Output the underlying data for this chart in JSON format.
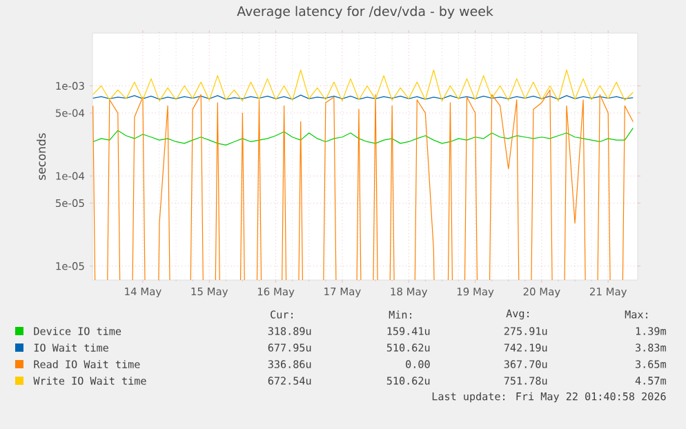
{
  "chart_data": {
    "type": "line",
    "title": "Average latency for /dev/vda - by week",
    "ylabel": "seconds",
    "log": "y",
    "grid": true,
    "legend": "bottom",
    "ylim": [
      7e-06,
      0.00385
    ],
    "yticks": [
      {
        "value": 1e-05,
        "label": "1e-05"
      },
      {
        "value": 5e-05,
        "label": "5e-05"
      },
      {
        "value": 0.0001,
        "label": "1e-04"
      },
      {
        "value": 0.0005,
        "label": "5e-04"
      },
      {
        "value": 0.001,
        "label": "1e-03"
      }
    ],
    "xlim": [
      "2026-05-13T05:50",
      "2026-05-21T10:40"
    ],
    "xticks": [
      {
        "value": "2026-05-14",
        "label": "14 May"
      },
      {
        "value": "2026-05-15",
        "label": "15 May"
      },
      {
        "value": "2026-05-16",
        "label": "16 May"
      },
      {
        "value": "2026-05-17",
        "label": "17 May"
      },
      {
        "value": "2026-05-18",
        "label": "18 May"
      },
      {
        "value": "2026-05-19",
        "label": "19 May"
      },
      {
        "value": "2026-05-20",
        "label": "20 May"
      },
      {
        "value": "2026-05-21",
        "label": "21 May"
      }
    ],
    "x": [
      "2026-05-13T06:00",
      "2026-05-13T09:00",
      "2026-05-13T12:00",
      "2026-05-13T15:00",
      "2026-05-13T18:00",
      "2026-05-13T21:00",
      "2026-05-14T00:00",
      "2026-05-14T03:00",
      "2026-05-14T06:00",
      "2026-05-14T09:00",
      "2026-05-14T12:00",
      "2026-05-14T15:00",
      "2026-05-14T18:00",
      "2026-05-14T21:00",
      "2026-05-15T00:00",
      "2026-05-15T03:00",
      "2026-05-15T06:00",
      "2026-05-15T09:00",
      "2026-05-15T12:00",
      "2026-05-15T15:00",
      "2026-05-15T18:00",
      "2026-05-15T21:00",
      "2026-05-16T00:00",
      "2026-05-16T03:00",
      "2026-05-16T06:00",
      "2026-05-16T09:00",
      "2026-05-16T12:00",
      "2026-05-16T15:00",
      "2026-05-16T18:00",
      "2026-05-16T21:00",
      "2026-05-17T00:00",
      "2026-05-17T03:00",
      "2026-05-17T06:00",
      "2026-05-17T09:00",
      "2026-05-17T12:00",
      "2026-05-17T15:00",
      "2026-05-17T18:00",
      "2026-05-17T21:00",
      "2026-05-18T00:00",
      "2026-05-18T03:00",
      "2026-05-18T06:00",
      "2026-05-18T09:00",
      "2026-05-18T12:00",
      "2026-05-18T15:00",
      "2026-05-18T18:00",
      "2026-05-18T21:00",
      "2026-05-19T00:00",
      "2026-05-19T03:00",
      "2026-05-19T06:00",
      "2026-05-19T09:00",
      "2026-05-19T12:00",
      "2026-05-19T15:00",
      "2026-05-19T18:00",
      "2026-05-19T21:00",
      "2026-05-20T00:00",
      "2026-05-20T03:00",
      "2026-05-20T06:00",
      "2026-05-20T09:00",
      "2026-05-20T12:00",
      "2026-05-20T15:00",
      "2026-05-20T18:00",
      "2026-05-20T21:00",
      "2026-05-21T00:00",
      "2026-05-21T03:00",
      "2026-05-21T06:00",
      "2026-05-21T09:00"
    ],
    "series": [
      {
        "name": "Device IO time",
        "color": "#00cc00",
        "values": [
          0.00024,
          0.00026,
          0.00025,
          0.00032,
          0.00028,
          0.00026,
          0.00029,
          0.00027,
          0.00025,
          0.00026,
          0.00024,
          0.00023,
          0.00025,
          0.00027,
          0.00025,
          0.00023,
          0.00022,
          0.00024,
          0.00026,
          0.00024,
          0.00025,
          0.00026,
          0.00028,
          0.00031,
          0.00027,
          0.00025,
          0.0003,
          0.00026,
          0.00024,
          0.00026,
          0.00027,
          0.0003,
          0.00026,
          0.00024,
          0.00023,
          0.00025,
          0.00026,
          0.00023,
          0.00024,
          0.00026,
          0.00028,
          0.00025,
          0.00023,
          0.00024,
          0.00026,
          0.00025,
          0.00027,
          0.00026,
          0.0003,
          0.00027,
          0.00026,
          0.00028,
          0.00027,
          0.00026,
          0.00027,
          0.00026,
          0.00028,
          0.0003,
          0.00027,
          0.00026,
          0.00025,
          0.00024,
          0.00026,
          0.00025,
          0.00025,
          0.00034
        ]
      },
      {
        "name": "IO Wait time",
        "color": "#0066b3",
        "values": [
          0.00073,
          0.00076,
          0.00072,
          0.00075,
          0.00073,
          0.00078,
          0.00072,
          0.00077,
          0.00071,
          0.00075,
          0.00072,
          0.00076,
          0.00073,
          0.00077,
          0.00072,
          0.00078,
          0.00071,
          0.00074,
          0.00072,
          0.00076,
          0.00073,
          0.00077,
          0.00072,
          0.00076,
          0.00071,
          0.00079,
          0.00072,
          0.00075,
          0.00073,
          0.00077,
          0.00072,
          0.00077,
          0.00071,
          0.00075,
          0.00072,
          0.00076,
          0.00073,
          0.00077,
          0.00072,
          0.00076,
          0.00071,
          0.00075,
          0.00072,
          0.00078,
          0.00073,
          0.00076,
          0.00072,
          0.00077,
          0.00073,
          0.00075,
          0.00072,
          0.00076,
          0.00073,
          0.00077,
          0.00072,
          0.00077,
          0.00071,
          0.00078,
          0.00072,
          0.00076,
          0.00073,
          0.00076,
          0.00073,
          0.00076,
          0.00072,
          0.00074
        ]
      },
      {
        "name": "Read IO Wait time",
        "color": "#ff8000",
        "values": [
          0.0006,
          null,
          0.0007,
          0.0005,
          null,
          0.00045,
          0.00075,
          null,
          3e-05,
          0.0006,
          null,
          null,
          0.00055,
          0.0008,
          null,
          0.00065,
          null,
          null,
          0.0005,
          null,
          0.0007,
          null,
          null,
          0.0006,
          null,
          0.0004,
          null,
          null,
          0.00065,
          0.00075,
          null,
          null,
          0.00055,
          null,
          0.0008,
          null,
          0.0006,
          null,
          null,
          0.0007,
          0.0005,
          1.5e-05,
          null,
          0.00065,
          null,
          0.00075,
          0.0005,
          null,
          0.0008,
          0.0006,
          0.00012,
          0.0007,
          null,
          0.00055,
          0.00065,
          0.0009,
          null,
          0.0006,
          3e-05,
          0.0007,
          null,
          0.0008,
          0.0005,
          null,
          0.0006,
          0.0004
        ]
      },
      {
        "name": "Write IO Wait time",
        "color": "#ffcc00",
        "values": [
          0.0008,
          0.001,
          0.0007,
          0.0009,
          0.00072,
          0.0011,
          0.0007,
          0.0012,
          0.00068,
          0.00095,
          0.0007,
          0.001,
          0.00073,
          0.0011,
          0.00069,
          0.0013,
          0.0007,
          0.0009,
          0.00068,
          0.0011,
          0.00071,
          0.0012,
          0.0007,
          0.001,
          0.00069,
          0.0015,
          0.00072,
          0.00095,
          0.0007,
          0.0011,
          0.00068,
          0.0012,
          0.0007,
          0.001,
          0.00071,
          0.0013,
          0.00069,
          0.00095,
          0.00072,
          0.0011,
          0.0007,
          0.0015,
          0.00068,
          0.001,
          0.00071,
          0.0012,
          0.0007,
          0.0013,
          0.00073,
          0.001,
          0.00069,
          0.0012,
          0.00072,
          0.0011,
          0.0007,
          0.001,
          0.00068,
          0.0015,
          0.00071,
          0.0012,
          0.0007,
          0.001,
          0.00072,
          0.0011,
          0.00069,
          0.00085
        ]
      }
    ],
    "annotations": [
      "Cur:",
      "Min:",
      "Avg:",
      "Max:",
      "318.89u",
      "159.41u",
      "275.91u",
      "1.39m",
      "677.95u",
      "510.62u",
      "742.19u",
      "3.83m",
      "336.86u",
      "0.00",
      "367.70u",
      "3.65m",
      "672.54u",
      "510.62u",
      "751.78u",
      "4.57m",
      "Last update: Fri May 22 01:40:58 2026"
    ]
  }
}
